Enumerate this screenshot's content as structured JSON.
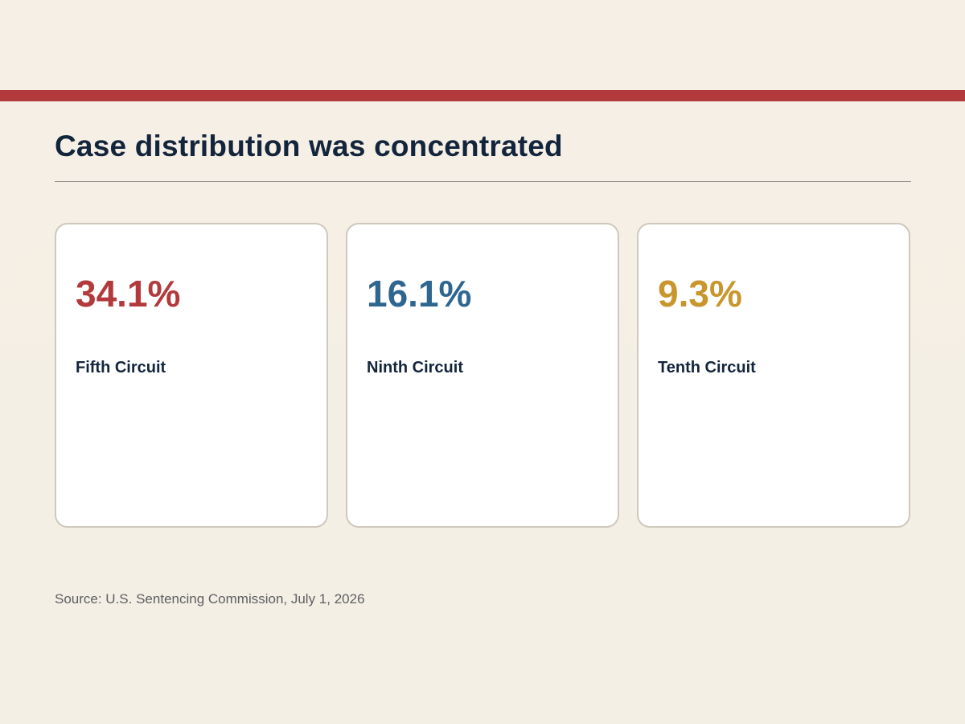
{
  "slide": {
    "title": "Case distribution was concentrated",
    "source": "Source: U.S. Sentencing Commission, July 1, 2026",
    "accent_color": "#b23a3d"
  },
  "cards": [
    {
      "value": "34.1%",
      "label": "Fifth Circuit",
      "color": "#b23a3d"
    },
    {
      "value": "16.1%",
      "label": "Ninth Circuit",
      "color": "#2f6690"
    },
    {
      "value": "9.3%",
      "label": "Tenth Circuit",
      "color": "#c9962d"
    }
  ]
}
